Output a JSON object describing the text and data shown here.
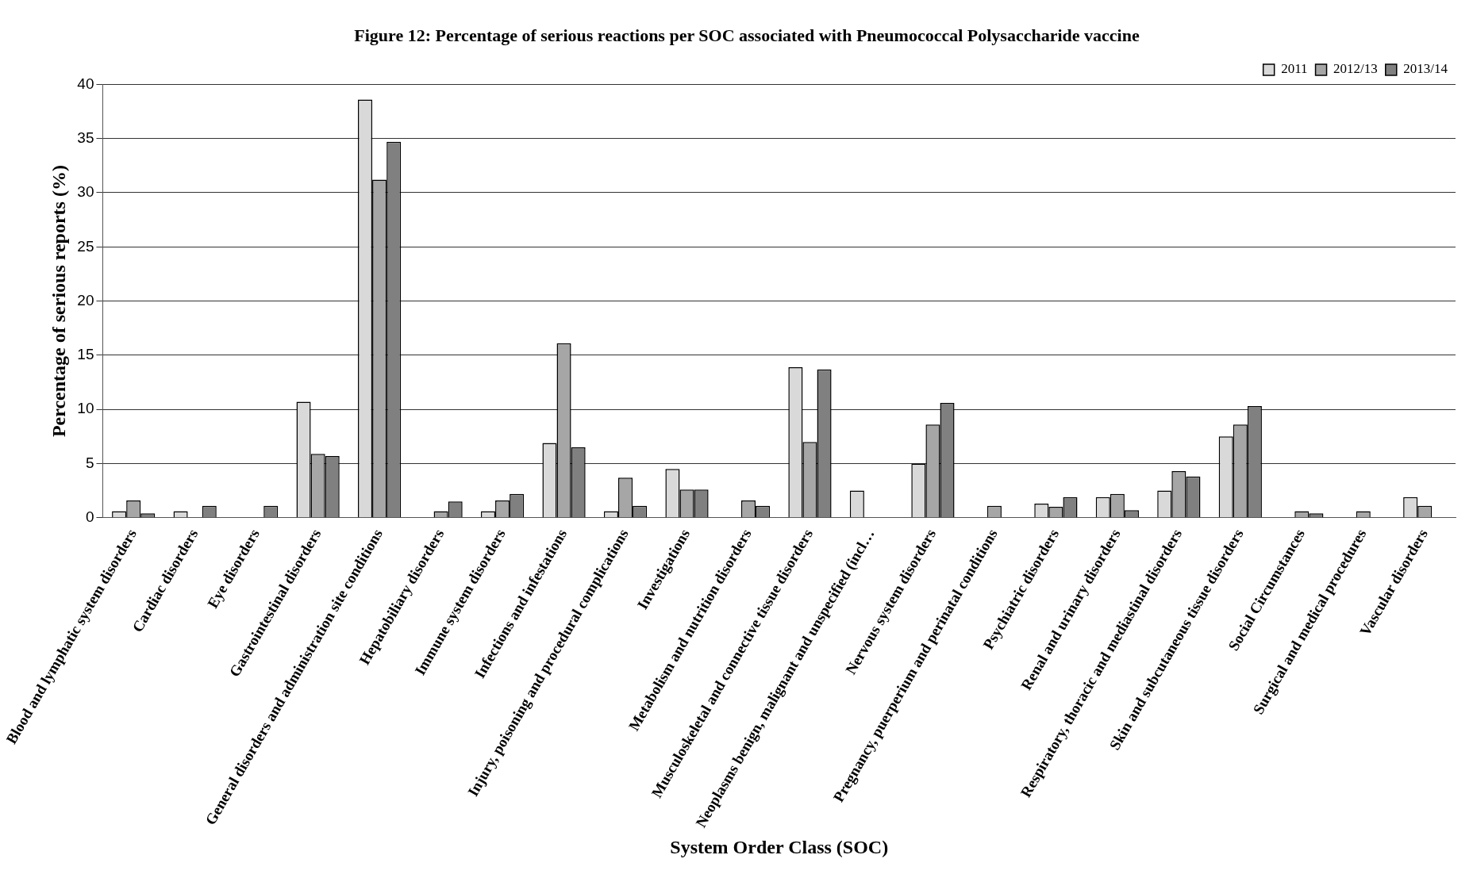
{
  "chart_data": {
    "type": "bar",
    "title": "Figure 12: Percentage of serious reactions per SOC associated with Pneumococcal Polysaccharide vaccine",
    "xlabel": "System Order Class (SOC)",
    "ylabel": "Percentage of serious reports (%)",
    "categories": [
      "Blood and lymphatic system disorders",
      "Cardiac disorders",
      "Eye disorders",
      "Gastrointestinal disorders",
      "General disorders and administration site conditions",
      "Hepatobiliary disorders",
      "Immune system disorders",
      "Infections and infestations",
      "Injury, poisoning and procedural complications",
      "Investigations",
      "Metabolism and nutrition disorders",
      "Musculoskeletal and connective tissue disorders",
      "Neoplasms benign, malignant and unspecified (incl…",
      "Nervous system disorders",
      "Pregnancy, puerperium and perinatal conditions",
      "Psychiatric disorders",
      "Renal and urinary disorders",
      "Respiratory, thoracic and mediastinal disorders",
      "Skin and subcutaneous tissue disorders",
      "Social Circumstances",
      "Surgical and medical procedures",
      "Vascular disorders"
    ],
    "series": [
      {
        "name": "2011",
        "color": "#d9d9d9",
        "values": [
          0.6,
          0.6,
          0,
          10.7,
          38.6,
          0,
          0.6,
          6.9,
          0.6,
          4.5,
          0,
          13.9,
          2.5,
          5.0,
          0,
          1.3,
          1.9,
          2.5,
          7.5,
          0,
          0,
          1.9
        ]
      },
      {
        "name": "2012/13",
        "color": "#a6a6a6",
        "values": [
          1.6,
          0,
          0,
          5.9,
          31.2,
          0.6,
          1.6,
          16.1,
          3.7,
          2.6,
          1.6,
          7.0,
          0,
          8.6,
          1.1,
          1.0,
          2.2,
          4.3,
          8.6,
          0.6,
          0.6,
          1.1
        ]
      },
      {
        "name": "2013/14",
        "color": "#808080",
        "values": [
          0.4,
          1.1,
          1.1,
          5.7,
          34.7,
          1.5,
          2.2,
          6.5,
          1.1,
          2.6,
          1.1,
          13.7,
          0,
          10.6,
          0,
          1.9,
          0.7,
          3.8,
          10.3,
          0.4,
          0,
          0
        ]
      }
    ],
    "ylim": [
      0,
      40
    ],
    "yticks": [
      0,
      5,
      10,
      15,
      20,
      25,
      30,
      35,
      40
    ],
    "grid": "y",
    "legend": "top right"
  }
}
